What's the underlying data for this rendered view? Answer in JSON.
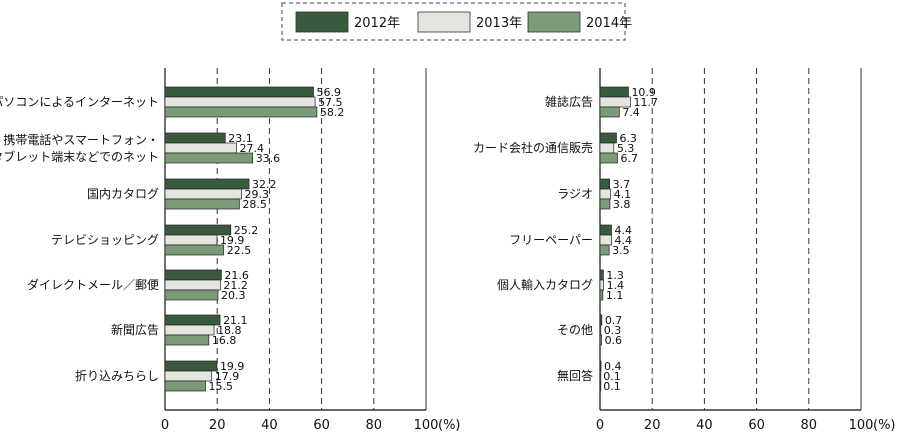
{
  "legend": {
    "items": [
      {
        "name": "2012年",
        "color": "#3a5a3e"
      },
      {
        "name": "2013年",
        "color": "#e3e5de"
      },
      {
        "name": "2014年",
        "color": "#7a9a78"
      }
    ]
  },
  "axis_unit": "(%)",
  "chart_data": [
    {
      "type": "bar",
      "orientation": "horizontal",
      "categories": [
        "パソコンによるインターネット",
        "携帯電話やスマートフォン・\nタブレット端末などでのネット",
        "国内カタログ",
        "テレビショッピング",
        "ダイレクトメール／郵便",
        "新聞広告",
        "折り込みちらし"
      ],
      "series": [
        {
          "name": "2012年",
          "values": [
            56.9,
            23.1,
            32.2,
            25.2,
            21.6,
            21.1,
            19.9
          ]
        },
        {
          "name": "2013年",
          "values": [
            57.5,
            27.4,
            29.3,
            19.9,
            21.2,
            18.8,
            17.9
          ]
        },
        {
          "name": "2014年",
          "values": [
            58.2,
            33.6,
            28.5,
            22.5,
            20.3,
            16.8,
            15.5
          ]
        }
      ],
      "xlim": [
        0,
        100
      ],
      "xticks": [
        0,
        20,
        40,
        60,
        80,
        100
      ],
      "xlabel": "(%)",
      "grid": true,
      "legend_position": "top"
    },
    {
      "type": "bar",
      "orientation": "horizontal",
      "categories": [
        "雑誌広告",
        "カード会社の通信販売",
        "ラジオ",
        "フリーペーパー",
        "個人輸入カタログ",
        "その他",
        "無回答"
      ],
      "series": [
        {
          "name": "2012年",
          "values": [
            10.9,
            6.3,
            3.7,
            4.4,
            1.3,
            0.7,
            0.4
          ]
        },
        {
          "name": "2013年",
          "values": [
            11.7,
            5.3,
            4.1,
            4.4,
            1.4,
            0.3,
            0.1
          ]
        },
        {
          "name": "2014年",
          "values": [
            7.4,
            6.7,
            3.8,
            3.5,
            1.1,
            0.6,
            0.1
          ]
        }
      ],
      "xlim": [
        0,
        100
      ],
      "xticks": [
        0,
        20,
        40,
        60,
        80,
        100
      ],
      "xlabel": "(%)",
      "grid": true,
      "legend_position": "top"
    }
  ]
}
